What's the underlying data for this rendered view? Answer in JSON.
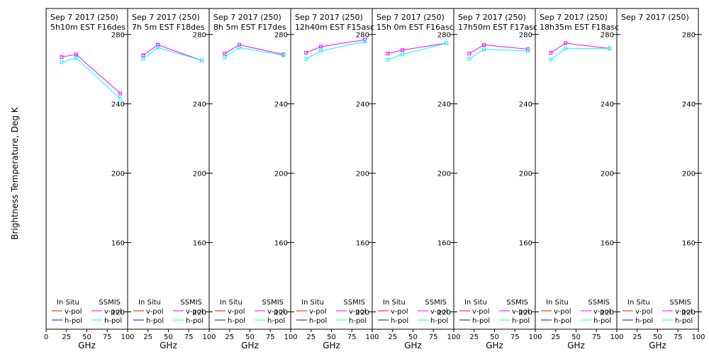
{
  "chart_data": {
    "type": "line",
    "ylabel": "Brightness Temperature, Deg K",
    "xlabel": "GHz",
    "ylim": [
      110,
      295
    ],
    "xlim": [
      0,
      100
    ],
    "yticks": [
      120,
      160,
      200,
      240,
      280
    ],
    "xticks": [
      0,
      25,
      50,
      75,
      100
    ],
    "x_tick_labels_middle": [
      "25",
      "50",
      "75",
      "100"
    ],
    "colors": {
      "insitu_vpol": "#ff0000",
      "insitu_hpol": "#0000ff",
      "ssmis_vpol": "#ff00ff",
      "ssmis_hpol": "#00ffff"
    },
    "legend": {
      "group1": "In Situ",
      "group2": "SSMIS",
      "vpol": "v-pol",
      "hpol": "h-pol"
    },
    "panels": [
      {
        "date": "Sep 7 2017 (250)",
        "time": "5h10m  EST F16des",
        "series": [
          {
            "name": "v-pol",
            "x": [
              19,
              37,
              91
            ],
            "y": [
              267,
              268.5,
              246
            ]
          },
          {
            "name": "h-pol",
            "x": [
              19,
              37,
              91
            ],
            "y": [
              264,
              266.5,
              243
            ]
          }
        ]
      },
      {
        "date": "Sep 7 2017 (250)",
        "time": "7h 5m  EST F18des",
        "series": [
          {
            "name": "v-pol",
            "x": [
              19,
              37,
              91
            ],
            "y": [
              268,
              274,
              265
            ]
          },
          {
            "name": "h-pol",
            "x": [
              19,
              37,
              91
            ],
            "y": [
              266,
              272.5,
              265
            ]
          }
        ]
      },
      {
        "date": "Sep 7 2017 (250)",
        "time": "8h 5m  EST F17des",
        "series": [
          {
            "name": "v-pol",
            "x": [
              19,
              37,
              91
            ],
            "y": [
              269,
              274,
              268.5
            ]
          },
          {
            "name": "h-pol",
            "x": [
              19,
              37,
              91
            ],
            "y": [
              267,
              272.5,
              268
            ]
          }
        ]
      },
      {
        "date": "Sep 7 2017 (250)",
        "time": "12h40m  EST F15asc",
        "series": [
          {
            "name": "v-pol",
            "x": [
              19,
              37,
              91
            ],
            "y": [
              269.5,
              273,
              277
            ]
          },
          {
            "name": "h-pol",
            "x": [
              19,
              37,
              91
            ],
            "y": [
              266,
              270.5,
              276
            ]
          }
        ]
      },
      {
        "date": "Sep 7 2017 (250)",
        "time": "15h 0m  EST F16asc",
        "series": [
          {
            "name": "v-pol",
            "x": [
              19,
              37,
              91
            ],
            "y": [
              269,
              271,
              275
            ]
          },
          {
            "name": "h-pol",
            "x": [
              19,
              37,
              91
            ],
            "y": [
              265.5,
              268.5,
              275
            ]
          }
        ]
      },
      {
        "date": "Sep 7 2017 (250)",
        "time": "17h50m  EST F17asc",
        "series": [
          {
            "name": "v-pol",
            "x": [
              19,
              37,
              91
            ],
            "y": [
              269,
              274,
              271.5
            ]
          },
          {
            "name": "h-pol",
            "x": [
              19,
              37,
              91
            ],
            "y": [
              266,
              271.5,
              270.5
            ]
          }
        ]
      },
      {
        "date": "Sep 7 2017 (250)",
        "time": "18h35m  EST F18asc",
        "series": [
          {
            "name": "v-pol",
            "x": [
              19,
              37,
              91
            ],
            "y": [
              269.5,
              275,
              272
            ]
          },
          {
            "name": "h-pol",
            "x": [
              19,
              37,
              91
            ],
            "y": [
              265.5,
              272,
              272
            ]
          }
        ]
      },
      {
        "date": "Sep 7 2017 (250)",
        "time": "",
        "series": []
      }
    ]
  }
}
